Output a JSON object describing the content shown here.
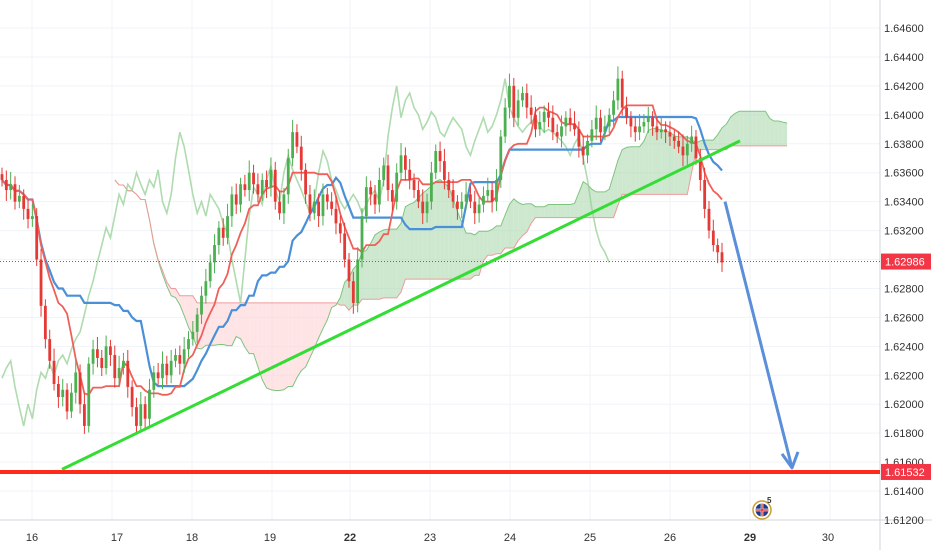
{
  "chart_data": {
    "type": "candlestick",
    "y_axis": {
      "position": "right",
      "range": [
        1.612,
        1.6466
      ],
      "ticks": [
        "1.64600",
        "1.64400",
        "1.64200",
        "1.64000",
        "1.63800",
        "1.63600",
        "1.63400",
        "1.63200",
        "1.63000",
        "1.62800",
        "1.62600",
        "1.62400",
        "1.62200",
        "1.62000",
        "1.61800",
        "1.61600",
        "1.61400",
        "1.61200"
      ]
    },
    "x_axis": {
      "ticks": [
        "16",
        "17",
        "18",
        "19",
        "22",
        "23",
        "24",
        "25",
        "26",
        "29",
        "30"
      ],
      "emphasized_ticks": [
        "22",
        "29"
      ]
    },
    "price_series": {
      "name": "",
      "close": [
        1.6355,
        1.6348,
        1.6352,
        1.634,
        1.6344,
        1.6335,
        1.6328,
        1.633,
        1.63,
        1.6268,
        1.6245,
        1.623,
        1.6214,
        1.6205,
        1.621,
        1.6195,
        1.6208,
        1.6222,
        1.62,
        1.6185,
        1.6228,
        1.6238,
        1.6232,
        1.6225,
        1.624,
        1.6234,
        1.6218,
        1.6225,
        1.623,
        1.6212,
        1.6198,
        1.6185,
        1.62,
        1.619,
        1.621,
        1.6222,
        1.6218,
        1.6228,
        1.622,
        1.623,
        1.6234,
        1.6228,
        1.6238,
        1.6245,
        1.625,
        1.6262,
        1.6275,
        1.6285,
        1.6298,
        1.631,
        1.6322,
        1.6315,
        1.633,
        1.6345,
        1.6338,
        1.6352,
        1.6348,
        1.636,
        1.6352,
        1.6345,
        1.6355,
        1.635,
        1.6362,
        1.634,
        1.6332,
        1.6345,
        1.637,
        1.6388,
        1.6378,
        1.6362,
        1.6345,
        1.6332,
        1.634,
        1.633,
        1.6345,
        1.634,
        1.6335,
        1.6325,
        1.6318,
        1.63,
        1.6285,
        1.627,
        1.63,
        1.633,
        1.635,
        1.6345,
        1.6338,
        1.6355,
        1.6365,
        1.6348,
        1.634,
        1.636,
        1.6372,
        1.6362,
        1.6355,
        1.6348,
        1.634,
        1.6332,
        1.634,
        1.636,
        1.6375,
        1.6368,
        1.6355,
        1.6348,
        1.634,
        1.6335,
        1.634,
        1.6345,
        1.634,
        1.6332,
        1.6338,
        1.6344,
        1.6348,
        1.634,
        1.6355,
        1.6385,
        1.6405,
        1.642,
        1.6398,
        1.641,
        1.6415,
        1.6405,
        1.64,
        1.639,
        1.6395,
        1.6402,
        1.6398,
        1.6388,
        1.6385,
        1.6392,
        1.6398,
        1.6394,
        1.639,
        1.6378,
        1.6372,
        1.6382,
        1.639,
        1.6398,
        1.6388,
        1.6392,
        1.64,
        1.641,
        1.6425,
        1.6405,
        1.6398,
        1.6392,
        1.6388,
        1.6392,
        1.6395,
        1.6398,
        1.6392,
        1.6388,
        1.639,
        1.6388,
        1.6385,
        1.6382,
        1.6378,
        1.6372,
        1.638,
        1.6385,
        1.637,
        1.6355,
        1.6335,
        1.632,
        1.631,
        1.6305,
        1.6298
      ],
      "last_price": "1.62986",
      "last_price_line_color": "#e53935"
    },
    "overlays": [
      {
        "kind": "ichimoku_tenkan",
        "color": "#f0605a"
      },
      {
        "kind": "ichimoku_kijun",
        "color": "#4a90d9"
      },
      {
        "kind": "ichimoku_chikou",
        "color": "#9bd29b"
      },
      {
        "kind": "ichimoku_cloud_bull",
        "color": "#a5d6a7"
      },
      {
        "kind": "ichimoku_cloud_bear",
        "color": "#ffcdd2"
      }
    ],
    "annotations": {
      "trendline": {
        "color": "#33dd33",
        "from": {
          "date": "16",
          "price": 1.6155
        },
        "to": {
          "date": "26",
          "price": 1.6382
        }
      },
      "support_line": {
        "color": "#ff2a1a",
        "price": 1.61532,
        "label": "1.61532"
      },
      "projection_arrow": {
        "color": "#5b8fd9",
        "from": {
          "date": "26",
          "price": 1.634
        },
        "to": {
          "date": "29",
          "price": 1.6156
        }
      }
    },
    "colors": {
      "up": "#4caf50",
      "down": "#e53935",
      "axis_tag_red": "#f23645",
      "background": "#ffffff"
    },
    "grid": true,
    "legend": "none"
  },
  "badge": {
    "count": "5",
    "icon": "uk-flag-icon"
  }
}
